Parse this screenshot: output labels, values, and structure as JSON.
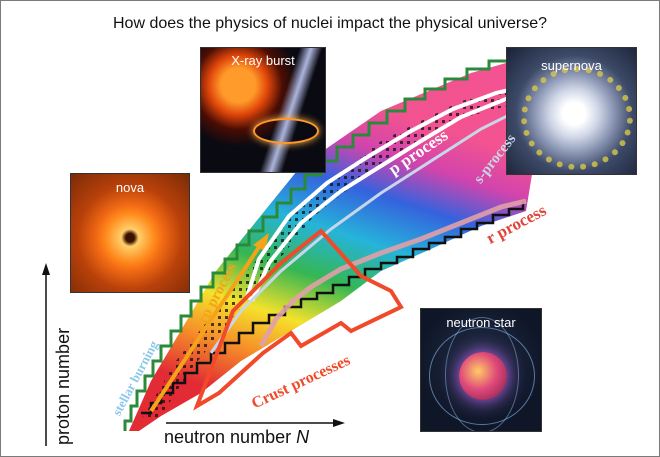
{
  "title": "How does the physics of nuclei impact  the physical universe?",
  "axes": {
    "x_label": "neutron number",
    "x_symbol": "N",
    "y_label": "proton number"
  },
  "photos": {
    "nova": "nova",
    "xray_burst": "X-ray burst",
    "supernova": "supernova",
    "neutron_star": "neutron star"
  },
  "processes": {
    "rp": "rp process",
    "p": "p process",
    "s": "s-process",
    "r": "r process",
    "crust": "Crust processes",
    "stellar_burning": "stellar burning"
  },
  "colors": {
    "rp": "#f5a31a",
    "p": "#ffffff",
    "s": "#c8d6ea",
    "r": "#e0453a",
    "crust": "#f04a2a",
    "stellar": "#8cc8ea",
    "band_red": "#e0202a",
    "band_yellow": "#f4e020",
    "band_green": "#2ab24a",
    "band_cyan": "#1ab0d8",
    "band_blue": "#2a5adc",
    "band_magenta": "#d03aa8"
  }
}
